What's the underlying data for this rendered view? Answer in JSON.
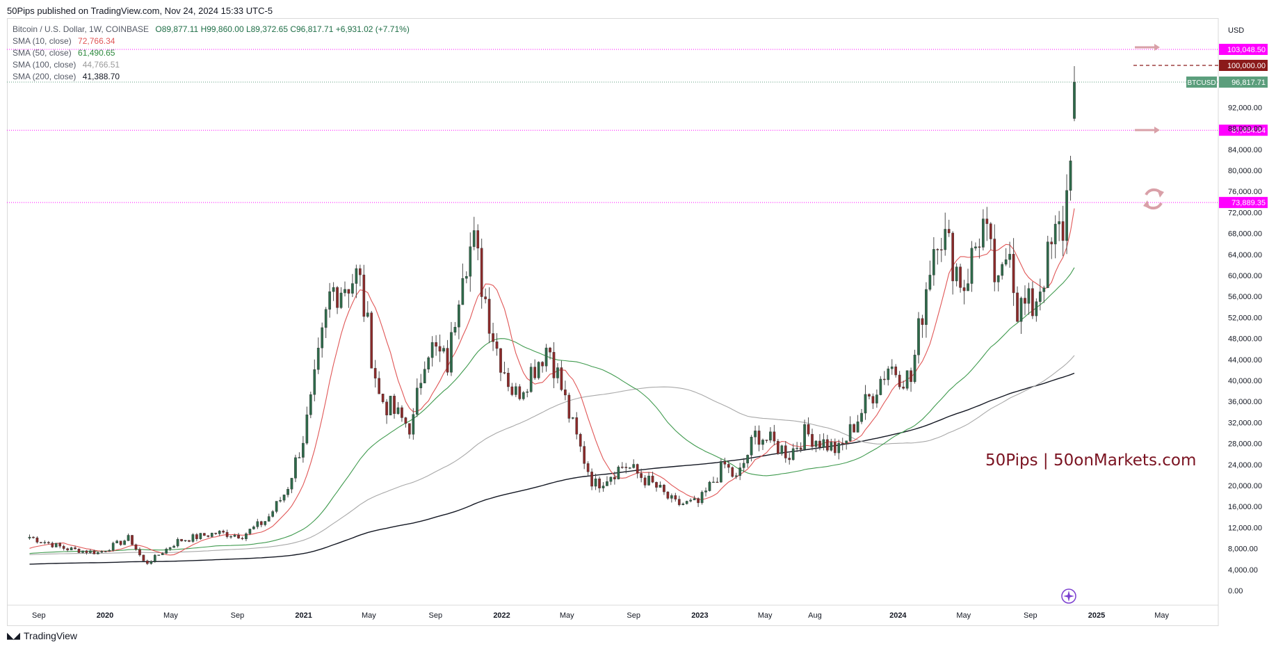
{
  "header": {
    "publish_line": "50Pips published on TradingView.com, Nov 24, 2024 15:33 UTC-5"
  },
  "footer": {
    "brand": "TradingView"
  },
  "watermark": "50Pips | 50onMarkets.com",
  "legend": {
    "symbol": "Bitcoin / U.S. Dollar, 1W, COINBASE",
    "ohlc": "O89,877.11  H99,860.00  L89,372.65  C96,817.71  +6,931.02 (+7.71%)",
    "sma": [
      {
        "label": "SMA (10, close)",
        "value": "72,766.34",
        "color": "#e05656"
      },
      {
        "label": "SMA (50, close)",
        "value": "61,490.65",
        "color": "#2e8b3e"
      },
      {
        "label": "SMA (100, close)",
        "value": "44,766.51",
        "color": "#9a9a9a"
      },
      {
        "label": "SMA (200, close)",
        "value": "41,388.70",
        "color": "#131722"
      }
    ]
  },
  "chart_data": {
    "type": "candlestick",
    "title": "Bitcoin / U.S. Dollar, 1W, COINBASE",
    "currency": "USD",
    "x_ticks": [
      "Sep",
      "2020",
      "May",
      "Sep",
      "2021",
      "May",
      "Sep",
      "2022",
      "May",
      "Sep",
      "2023",
      "May",
      "Aug",
      "2024",
      "May",
      "Sep",
      "2025",
      "May"
    ],
    "x_tick_dates": [
      "2019-09-01",
      "2020-01-01",
      "2020-05-01",
      "2020-09-01",
      "2021-01-01",
      "2021-05-01",
      "2021-09-01",
      "2022-01-01",
      "2022-05-01",
      "2022-09-01",
      "2023-01-01",
      "2023-05-01",
      "2023-08-01",
      "2024-01-01",
      "2024-05-01",
      "2024-09-01",
      "2025-01-01",
      "2025-05-01"
    ],
    "bold_ticks": [
      "2020",
      "2021",
      "2022",
      "2023",
      "2024",
      "2025"
    ],
    "y_ticks": [
      0,
      4000,
      8000,
      12000,
      16000,
      20000,
      24000,
      28000,
      32000,
      36000,
      40000,
      44000,
      48000,
      52000,
      56000,
      60000,
      64000,
      68000,
      72000,
      76000,
      80000,
      84000,
      88000,
      92000,
      96000
    ],
    "y_tick_labels": [
      "0.00",
      "4,000.00",
      "8,000.00",
      "12,000.00",
      "16,000.00",
      "20,000.00",
      "24,000.00",
      "28,000.00",
      "32,000.00",
      "36,000.00",
      "40,000.00",
      "44,000.00",
      "48,000.00",
      "52,000.00",
      "56,000.00",
      "60,000.00",
      "64,000.00",
      "68,000.00",
      "72,000.00",
      "76,000.00",
      "80,000.00",
      "84,000.00",
      "88,000.00",
      "92,000.00"
    ],
    "ylim": [
      0,
      100000
    ],
    "price_levels": [
      {
        "value": 103048.5,
        "label": "103,048.50",
        "color": "#ff00ff",
        "style": "dotted"
      },
      {
        "value": 100000,
        "label": "100,000.00",
        "color": "#8b1a1a",
        "style": "dashed"
      },
      {
        "value": 87654.84,
        "label": "87,654.84",
        "color": "#ff00ff",
        "style": "dotted"
      },
      {
        "value": 73889.35,
        "label": "73,889.35",
        "color": "#ff00ff",
        "style": "dotted"
      }
    ],
    "last_price": {
      "symbol": "BTCUSD",
      "value": 96817.71,
      "label": "96,817.71",
      "color": "#5b9e7c"
    },
    "anchors": [
      [
        "2019-08-15",
        10200
      ],
      [
        "2019-10-20",
        8000
      ],
      [
        "2019-12-20",
        7200
      ],
      [
        "2020-02-15",
        10000
      ],
      [
        "2020-03-15",
        5000
      ],
      [
        "2020-05-15",
        9500
      ],
      [
        "2020-07-25",
        11000
      ],
      [
        "2020-09-10",
        10500
      ],
      [
        "2020-10-25",
        13500
      ],
      [
        "2020-11-30",
        19000
      ],
      [
        "2020-12-31",
        29000
      ],
      [
        "2021-01-15",
        36000
      ],
      [
        "2021-02-20",
        57000
      ],
      [
        "2021-04-12",
        60000
      ],
      [
        "2021-05-20",
        37000
      ],
      [
        "2021-06-25",
        33000
      ],
      [
        "2021-07-20",
        31000
      ],
      [
        "2021-08-15",
        47000
      ],
      [
        "2021-09-25",
        43000
      ],
      [
        "2021-10-20",
        63000
      ],
      [
        "2021-11-10",
        66000
      ],
      [
        "2021-12-20",
        47000
      ],
      [
        "2022-01-25",
        37000
      ],
      [
        "2022-03-28",
        47000
      ],
      [
        "2022-05-15",
        30000
      ],
      [
        "2022-06-20",
        20000
      ],
      [
        "2022-08-15",
        24000
      ],
      [
        "2022-10-15",
        19500
      ],
      [
        "2022-11-15",
        16500
      ],
      [
        "2022-12-30",
        16600
      ],
      [
        "2023-02-15",
        24000
      ],
      [
        "2023-03-10",
        21000
      ],
      [
        "2023-04-15",
        30000
      ],
      [
        "2023-06-15",
        26000
      ],
      [
        "2023-07-15",
        30000
      ],
      [
        "2023-09-15",
        26500
      ],
      [
        "2023-10-25",
        34000
      ],
      [
        "2023-12-15",
        43000
      ],
      [
        "2024-01-25",
        40000
      ],
      [
        "2024-02-28",
        62000
      ],
      [
        "2024-03-15",
        70000
      ],
      [
        "2024-05-01",
        58000
      ],
      [
        "2024-06-05",
        70000
      ],
      [
        "2024-07-05",
        56000
      ],
      [
        "2024-07-25",
        68000
      ],
      [
        "2024-08-05",
        54000
      ],
      [
        "2024-09-05",
        54000
      ],
      [
        "2024-10-20",
        68000
      ],
      [
        "2024-11-03",
        69000
      ],
      [
        "2024-11-10",
        80000
      ],
      [
        "2024-11-17",
        91000
      ],
      [
        "2024-11-24",
        96800
      ]
    ],
    "sma_endpoints": {
      "sma10": 72766.34,
      "sma50": 61490.65,
      "sma100": 44766.51,
      "sma200": 41388.7
    }
  }
}
